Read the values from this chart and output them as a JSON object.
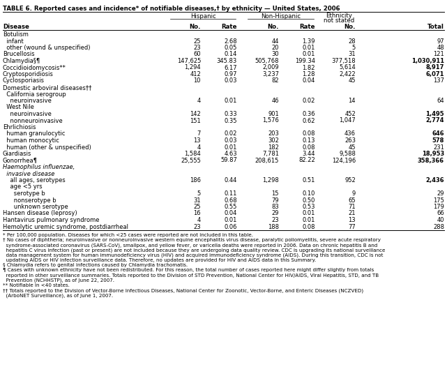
{
  "title": "TABLE 6. Reported cases and incidence* of notifiable diseases,† by ethnicity — United States, 2006",
  "rows": [
    {
      "disease": "Botulism",
      "indent": 0,
      "italic": false,
      "data": [
        "",
        "",
        "",
        "",
        "",
        ""
      ],
      "bold_total": false
    },
    {
      "disease": "  infant",
      "indent": 1,
      "italic": false,
      "data": [
        "25",
        "2.68",
        "44",
        "1.39",
        "28",
        "97"
      ],
      "bold_total": false
    },
    {
      "disease": "  other (wound & unspecified)",
      "indent": 1,
      "italic": false,
      "data": [
        "23",
        "0.05",
        "20",
        "0.01",
        "5",
        "48"
      ],
      "bold_total": false
    },
    {
      "disease": "Brucellosis",
      "indent": 0,
      "italic": false,
      "data": [
        "60",
        "0.14",
        "30",
        "0.01",
        "31",
        "121"
      ],
      "bold_total": false
    },
    {
      "disease": "Chlamydia§¶",
      "indent": 0,
      "italic": false,
      "data": [
        "147,625",
        "345.83",
        "505,768",
        "199.34",
        "377,518",
        "1,030,911"
      ],
      "bold_total": true
    },
    {
      "disease": "Coccidioidomycosis**",
      "indent": 0,
      "italic": false,
      "data": [
        "1,294",
        "6.17",
        "2,009",
        "1.82",
        "5,614",
        "8,917"
      ],
      "bold_total": true
    },
    {
      "disease": "Cryptosporidiosis",
      "indent": 0,
      "italic": false,
      "data": [
        "412",
        "0.97",
        "3,237",
        "1.28",
        "2,422",
        "6,071"
      ],
      "bold_total": true
    },
    {
      "disease": "Cyclosporiasis",
      "indent": 0,
      "italic": false,
      "data": [
        "10",
        "0.03",
        "82",
        "0.04",
        "45",
        "137"
      ],
      "bold_total": false
    },
    {
      "disease": "Domestic arboviral diseases††",
      "indent": 0,
      "italic": false,
      "data": [
        "",
        "",
        "",
        "",
        "",
        ""
      ],
      "bold_total": false
    },
    {
      "disease": "  California serogroup",
      "indent": 1,
      "italic": false,
      "data": [
        "",
        "",
        "",
        "",
        "",
        ""
      ],
      "bold_total": false
    },
    {
      "disease": "    neuroinvasive",
      "indent": 2,
      "italic": false,
      "data": [
        "4",
        "0.01",
        "46",
        "0.02",
        "14",
        "64"
      ],
      "bold_total": false
    },
    {
      "disease": "  West Nile",
      "indent": 1,
      "italic": false,
      "data": [
        "",
        "",
        "",
        "",
        "",
        ""
      ],
      "bold_total": false
    },
    {
      "disease": "    neuroinvasive",
      "indent": 2,
      "italic": false,
      "data": [
        "142",
        "0.33",
        "901",
        "0.36",
        "452",
        "1,495"
      ],
      "bold_total": true
    },
    {
      "disease": "    nonneuroinvasive",
      "indent": 2,
      "italic": false,
      "data": [
        "151",
        "0.35",
        "1,576",
        "0.62",
        "1,047",
        "2,774"
      ],
      "bold_total": true
    },
    {
      "disease": "Ehrlichiosis",
      "indent": 0,
      "italic": false,
      "data": [
        "",
        "",
        "",
        "",
        "",
        ""
      ],
      "bold_total": false
    },
    {
      "disease": "  human granulocytic",
      "indent": 1,
      "italic": false,
      "data": [
        "7",
        "0.02",
        "203",
        "0.08",
        "436",
        "646"
      ],
      "bold_total": true
    },
    {
      "disease": "  human monocytic",
      "indent": 1,
      "italic": false,
      "data": [
        "13",
        "0.03",
        "302",
        "0.13",
        "263",
        "578"
      ],
      "bold_total": true
    },
    {
      "disease": "  human (other & unspecified)",
      "indent": 1,
      "italic": false,
      "data": [
        "4",
        "0.01",
        "182",
        "0.08",
        "45",
        "231"
      ],
      "bold_total": false
    },
    {
      "disease": "Giardiasis",
      "indent": 0,
      "italic": false,
      "data": [
        "1,584",
        "4.63",
        "7,781",
        "3.44",
        "9,588",
        "18,953"
      ],
      "bold_total": true
    },
    {
      "disease": "Gonorrhea¶",
      "indent": 0,
      "italic": false,
      "data": [
        "25,555",
        "59.87",
        "208,615",
        "82.22",
        "124,196",
        "358,366"
      ],
      "bold_total": true
    },
    {
      "disease": "Haemophilus influenzae,",
      "indent": 0,
      "italic": true,
      "data": [
        "",
        "",
        "",
        "",
        "",
        ""
      ],
      "bold_total": false
    },
    {
      "disease": "  invasive disease",
      "indent": 1,
      "italic": true,
      "data": [
        "",
        "",
        "",
        "",
        "",
        ""
      ],
      "bold_total": false
    },
    {
      "disease": "    all ages, serotypes",
      "indent": 2,
      "italic": false,
      "data": [
        "186",
        "0.44",
        "1,298",
        "0.51",
        "952",
        "2,436"
      ],
      "bold_total": true
    },
    {
      "disease": "    age <5 yrs",
      "indent": 2,
      "italic": false,
      "data": [
        "",
        "",
        "",
        "",
        "",
        ""
      ],
      "bold_total": false
    },
    {
      "disease": "      serotype b",
      "indent": 3,
      "italic": false,
      "data": [
        "5",
        "0.11",
        "15",
        "0.10",
        "9",
        "29"
      ],
      "bold_total": false
    },
    {
      "disease": "      nonserotype b",
      "indent": 3,
      "italic": false,
      "data": [
        "31",
        "0.68",
        "79",
        "0.50",
        "65",
        "175"
      ],
      "bold_total": false
    },
    {
      "disease": "      unknown serotype",
      "indent": 3,
      "italic": false,
      "data": [
        "25",
        "0.55",
        "83",
        "0.53",
        "71",
        "179"
      ],
      "bold_total": false
    },
    {
      "disease": "Hansen disease (leprosy)",
      "indent": 0,
      "italic": false,
      "data": [
        "16",
        "0.04",
        "29",
        "0.01",
        "21",
        "66"
      ],
      "bold_total": false
    },
    {
      "disease": "Hantavirus pulmonary syndrome",
      "indent": 0,
      "italic": false,
      "data": [
        "4",
        "0.01",
        "23",
        "0.01",
        "13",
        "40"
      ],
      "bold_total": false
    },
    {
      "disease": "Hemolytic uremic syndrome, postdiarrheal",
      "indent": 0,
      "italic": false,
      "data": [
        "23",
        "0.06",
        "188",
        "0.08",
        "77",
        "288"
      ],
      "bold_total": false
    }
  ],
  "footnote_lines": [
    "* Per 100,000 population. Diseases for which <25 cases were reported are not included in this table.",
    "† No cases of diphtheria; neuroinvasive or nonneuroinvasive western equine encephalitis virus disease, paralytic poliomyelitis, severe acute respiratory",
    "  syndrome-associated coronavirus (SARS-CoV), smallpox, and yellow fever, or varicella deaths were reported in 2006. Data on chronic hepatitis B and",
    "  hepatitis C virus infection (past or present) are not included because they are undergoing data quality review. CDC is upgrading its national surveillance",
    "  data management system for human immunodeficiency virus (HIV) and acquired immunodeficiency syndrome (AIDS). During this transition, CDC is not",
    "  updating AIDS or HIV infection surveillance data. Therefore, no updates are provided for HIV and AIDS data in this Summary.",
    "§ Chlamydia refers to genital infections caused by Chlamydia trachomatis.",
    "¶ Cases with unknown ethnicity have not been redistributed. For this reason, the total number of cases reported here might differ slightly from totals",
    "  reported in other surveillance summaries. Totals reported to the Division of STD Prevention, National Center for HIV/AIDS, Viral Hepatitis, STD, and TB",
    "  Prevention (NCHHSTP), as of June 22, 2007.",
    "** Notifiable in <40 states.",
    "†† Totals reported to the Division of Vector-Borne Infectious Diseases, National Center for Zoonotic, Vector-Borne, and Enteric Diseases (NCZVED)",
    "  (ArboNET Surveillance), as of June 1, 2007."
  ]
}
